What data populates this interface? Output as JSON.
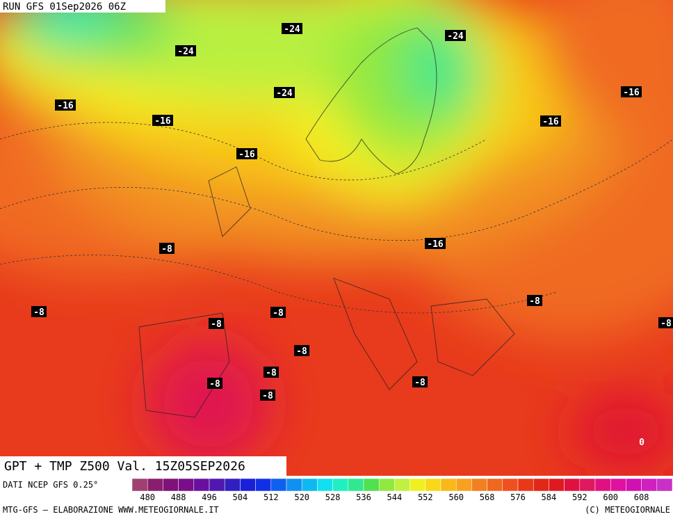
{
  "header": {
    "title": "RUN GFS 01Sep2026 06Z"
  },
  "map": {
    "title": "GPT + TMP Z500 Val. 15Z05SEP2026",
    "contour_labels": [
      "-24",
      "-24",
      "-24",
      "-24",
      "-16",
      "-16",
      "-16",
      "-16",
      "-16",
      "-16",
      "-8",
      "-8",
      "-8",
      "-8",
      "-8",
      "-8",
      "-8",
      "-8",
      "-8",
      "-8",
      "-8",
      "0"
    ]
  },
  "colorbar": {
    "source": "DATI NCEP GFS 0.25°",
    "labels": [
      480,
      488,
      496,
      504,
      512,
      520,
      528,
      536,
      544,
      552,
      560,
      568,
      576,
      584,
      592,
      600,
      608
    ],
    "colors": [
      "#a04070",
      "#8a1e6e",
      "#80107a",
      "#7a0e8a",
      "#6a10a0",
      "#5018b0",
      "#3020c0",
      "#1a20d8",
      "#1030e8",
      "#1060f0",
      "#1090f0",
      "#10b8f0",
      "#10e0f0",
      "#20f0c0",
      "#30e890",
      "#50e050",
      "#90e840",
      "#c0f040",
      "#f0f020",
      "#f8d818",
      "#f8b818",
      "#f8a020",
      "#f08020",
      "#f06820",
      "#f05020",
      "#e83818",
      "#e02818",
      "#e01820",
      "#e01040",
      "#e01860",
      "#e01080",
      "#e010a0",
      "#d010b0",
      "#d020c0",
      "#c830c8"
    ]
  },
  "footer": {
    "left": "MTG-GFS — ELABORAZIONE WWW.METEOGIORNALE.IT",
    "right": "(C) METEOGIORNALE"
  }
}
